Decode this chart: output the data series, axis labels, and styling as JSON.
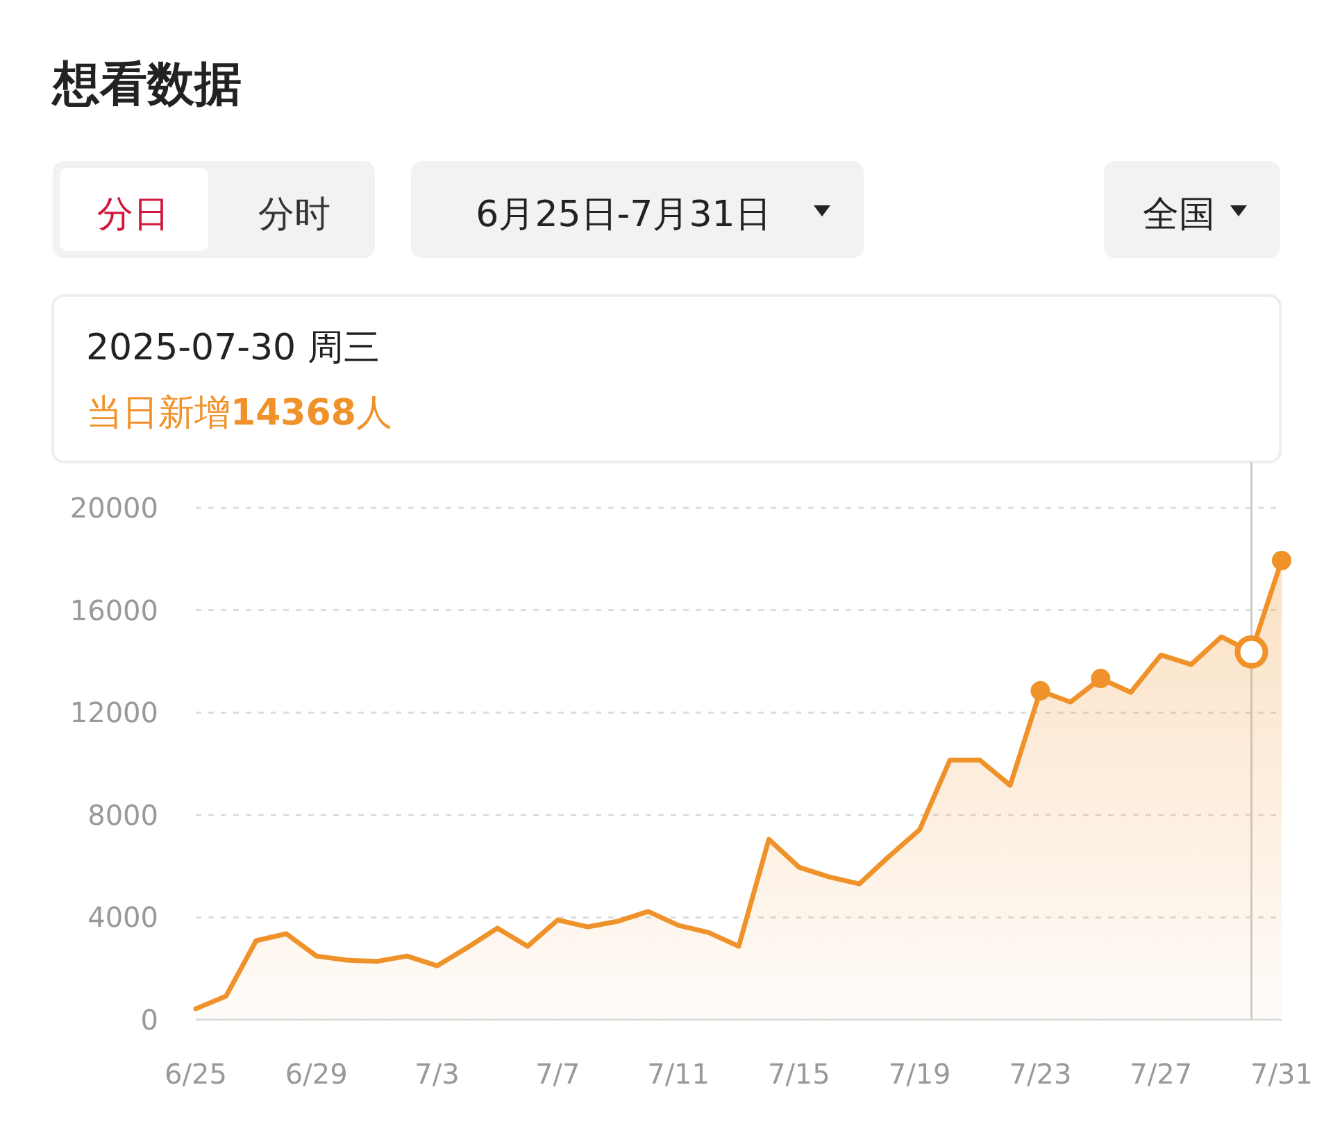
{
  "chart_data": {
    "type": "area",
    "title": "想看数据",
    "annotations": [
      "分日",
      "分时",
      "6月25日-7月31日",
      "全国",
      "2025-07-30 周三",
      "当日新增**14368**人"
    ],
    "x": [
      "2025-06-25",
      "2025-06-26",
      "2025-06-27",
      "2025-06-28",
      "2025-06-29",
      "2025-06-30",
      "2025-07-01",
      "2025-07-02",
      "2025-07-03",
      "2025-07-04",
      "2025-07-05",
      "2025-07-06",
      "2025-07-07",
      "2025-07-08",
      "2025-07-09",
      "2025-07-10",
      "2025-07-11",
      "2025-07-12",
      "2025-07-13",
      "2025-07-14",
      "2025-07-15",
      "2025-07-16",
      "2025-07-17",
      "2025-07-18",
      "2025-07-19",
      "2025-07-20",
      "2025-07-21",
      "2025-07-22",
      "2025-07-23",
      "2025-07-24",
      "2025-07-25",
      "2025-07-26",
      "2025-07-27",
      "2025-07-28",
      "2025-07-29",
      "2025-07-30",
      "2025-07-31"
    ],
    "series": [
      {
        "color": "#f0922a",
        "values": [
          430,
          920,
          3090,
          3360,
          2490,
          2330,
          2280,
          2490,
          2110,
          2820,
          3580,
          2870,
          3900,
          3630,
          3850,
          4230,
          3690,
          3410,
          2870,
          7050,
          5960,
          5580,
          5310,
          6400,
          7430,
          10140,
          10140,
          9160,
          12850,
          12410,
          13330,
          12790,
          14250,
          13880,
          14960,
          14368,
          17940
        ]
      },
      {
        "type": "scatter",
        "marker": "circle",
        "color": "#f0922a",
        "x": [
          "2025-07-23",
          "2025-07-25",
          "2025-07-31"
        ],
        "values": [
          12850,
          13330,
          17940
        ]
      }
    ],
    "xlim": [
      "2025-06-25",
      "2025-07-31"
    ],
    "xticks": [
      {
        "value": "2025-06-25",
        "label": "6/25"
      },
      {
        "value": "2025-06-29",
        "label": "6/29"
      },
      {
        "value": "2025-07-03",
        "label": "7/3"
      },
      {
        "value": "2025-07-07",
        "label": "7/7"
      },
      {
        "value": "2025-07-11",
        "label": "7/11"
      },
      {
        "value": "2025-07-15",
        "label": "7/15"
      },
      {
        "value": "2025-07-19",
        "label": "7/19"
      },
      {
        "value": "2025-07-23",
        "label": "7/23"
      },
      {
        "value": "2025-07-27",
        "label": "7/27"
      },
      {
        "value": "2025-07-31",
        "label": "7/31"
      }
    ],
    "ylim": [
      0,
      20000
    ],
    "yticks": [
      0,
      4000,
      8000,
      12000,
      16000,
      20000
    ],
    "ref_lines": [
      {
        "axis": "x",
        "value": "2025-07-30",
        "color": "#cccccc"
      }
    ],
    "grid": "y",
    "marker": "none",
    "line_style": "solid"
  }
}
